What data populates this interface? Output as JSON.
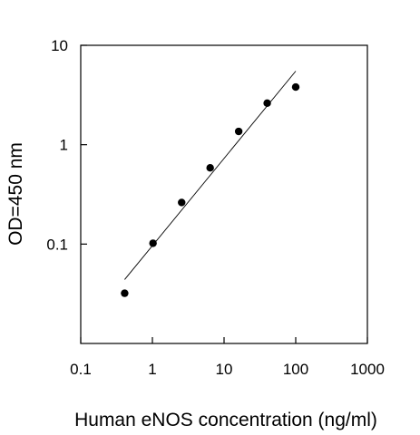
{
  "chart_data": {
    "type": "scatter",
    "title": "",
    "xlabel": "Human eNOS concentration (ng/ml)",
    "ylabel": "OD=450 nm",
    "x_scale": "log",
    "y_scale": "log",
    "xlim": [
      0.1,
      1000
    ],
    "ylim": [
      0.01,
      10
    ],
    "x_ticks": [
      {
        "value": 0.1,
        "label": "0.1"
      },
      {
        "value": 1,
        "label": "1"
      },
      {
        "value": 10,
        "label": "10"
      },
      {
        "value": 100,
        "label": "100"
      },
      {
        "value": 1000,
        "label": "1000"
      }
    ],
    "y_ticks": [
      {
        "value": 0.1,
        "label": "0.1"
      },
      {
        "value": 1,
        "label": "1"
      },
      {
        "value": 10,
        "label": "10"
      }
    ],
    "grid": false,
    "legend": "none",
    "series": [
      {
        "type": "scatter",
        "x": [
          0.41,
          1.02,
          2.56,
          6.4,
          16,
          40,
          100
        ],
        "y": [
          0.032,
          0.102,
          0.262,
          0.585,
          1.36,
          2.62,
          3.8
        ]
      },
      {
        "type": "line",
        "x": [
          0.41,
          100
        ],
        "y": [
          0.044,
          5.5
        ]
      }
    ],
    "colors": {
      "marker": "#000000",
      "line": "#000000",
      "axis": "#000000"
    }
  }
}
